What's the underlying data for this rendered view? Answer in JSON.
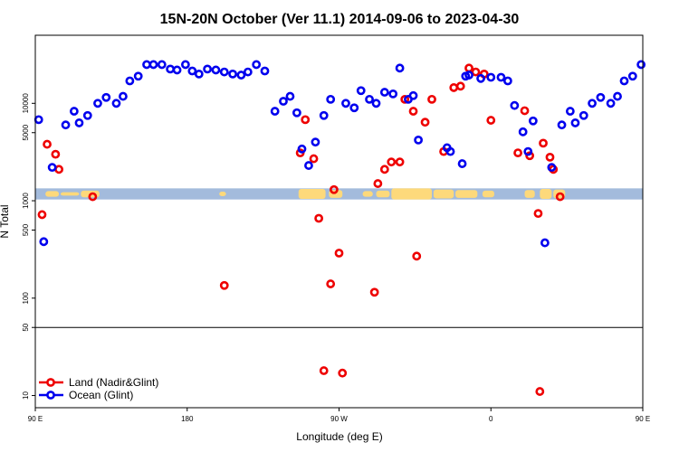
{
  "chart_data": {
    "type": "scatter",
    "title": "15N-20N October (Ver 11.1)   2014-09-06 to 2023-04-30",
    "xlabel": "Longitude (deg E)",
    "ylabel": "N Total",
    "xlim": [
      90,
      450
    ],
    "y_scale": "log",
    "ylim": [
      7.5,
      50000
    ],
    "x_ticks": [
      {
        "value": 90,
        "label": "90 E"
      },
      {
        "value": 180,
        "label": "180"
      },
      {
        "value": 270,
        "label": "90 W"
      },
      {
        "value": 360,
        "label": "0"
      },
      {
        "value": 450,
        "label": "90 E"
      },
      {
        "value": 540,
        "label": "180"
      }
    ],
    "y_ticks": [
      {
        "value": 10,
        "label": "10"
      },
      {
        "value": 50,
        "label": "50"
      },
      {
        "value": 100,
        "label": "100"
      },
      {
        "value": 500,
        "label": "500"
      },
      {
        "value": 1000,
        "label": "1000"
      },
      {
        "value": 5000,
        "label": "5000"
      },
      {
        "value": 10000,
        "label": "10000"
      }
    ],
    "reference_line_y": 50,
    "map_strip": {
      "y_low": 1030,
      "y_high": 1340,
      "ocean_color": "#a3bbdc",
      "land_color": "#fdd97b"
    },
    "legend_position": "bottom-left",
    "series": [
      {
        "name": "Land (Nadir&Glint)",
        "color": "#ee0000",
        "points": [
          [
            94,
            720
          ],
          [
            97,
            3800
          ],
          [
            102,
            3000
          ],
          [
            104,
            2100
          ],
          [
            124,
            1100
          ],
          [
            202,
            135
          ],
          [
            247,
            3100
          ],
          [
            250,
            6800
          ],
          [
            255,
            2700
          ],
          [
            258,
            660
          ],
          [
            261,
            18
          ],
          [
            265,
            140
          ],
          [
            267,
            1300
          ],
          [
            270,
            290
          ],
          [
            272,
            17
          ],
          [
            291,
            115
          ],
          [
            293,
            1500
          ],
          [
            297,
            2100
          ],
          [
            301,
            2500
          ],
          [
            306,
            2500
          ],
          [
            309,
            11000
          ],
          [
            314,
            8300
          ],
          [
            316,
            270
          ],
          [
            321,
            6400
          ],
          [
            325,
            11000
          ],
          [
            332,
            3200
          ],
          [
            338,
            14500
          ],
          [
            342,
            15000
          ],
          [
            347,
            23000
          ],
          [
            351,
            21000
          ],
          [
            356,
            20000
          ],
          [
            360,
            6700
          ],
          [
            376,
            3100
          ],
          [
            380,
            8400
          ],
          [
            383,
            2900
          ],
          [
            388,
            740
          ],
          [
            389,
            11
          ],
          [
            391,
            3900
          ],
          [
            395,
            2800
          ],
          [
            397,
            2100
          ],
          [
            401,
            1100
          ]
        ]
      },
      {
        "name": "Ocean (Glint)",
        "color": "#0000ee",
        "points": [
          [
            92,
            6800
          ],
          [
            95,
            380
          ],
          [
            100,
            2200
          ],
          [
            108,
            6000
          ],
          [
            113,
            8300
          ],
          [
            116,
            6300
          ],
          [
            121,
            7500
          ],
          [
            127,
            10000
          ],
          [
            132,
            11500
          ],
          [
            138,
            10000
          ],
          [
            142,
            11800
          ],
          [
            146,
            17000
          ],
          [
            151,
            19000
          ],
          [
            156,
            25000
          ],
          [
            160,
            25000
          ],
          [
            165,
            25000
          ],
          [
            170,
            22500
          ],
          [
            174,
            22000
          ],
          [
            179,
            25000
          ],
          [
            183,
            21500
          ],
          [
            187,
            20000
          ],
          [
            192,
            22500
          ],
          [
            197,
            22000
          ],
          [
            202,
            21000
          ],
          [
            207,
            20000
          ],
          [
            212,
            19500
          ],
          [
            216,
            21000
          ],
          [
            221,
            25000
          ],
          [
            226,
            21500
          ],
          [
            232,
            8300
          ],
          [
            237,
            10500
          ],
          [
            241,
            11800
          ],
          [
            245,
            8000
          ],
          [
            248,
            3400
          ],
          [
            252,
            2300
          ],
          [
            256,
            4000
          ],
          [
            261,
            7500
          ],
          [
            265,
            11000
          ],
          [
            274,
            10000
          ],
          [
            279,
            9000
          ],
          [
            283,
            13500
          ],
          [
            288,
            11000
          ],
          [
            292,
            10000
          ],
          [
            297,
            13000
          ],
          [
            302,
            12500
          ],
          [
            306,
            23000
          ],
          [
            311,
            11000
          ],
          [
            314,
            12000
          ],
          [
            317,
            4200
          ],
          [
            334,
            3500
          ],
          [
            336,
            3200
          ],
          [
            343,
            2400
          ],
          [
            345,
            19000
          ],
          [
            347,
            19500
          ],
          [
            354,
            18000
          ],
          [
            360,
            18500
          ],
          [
            366,
            18500
          ],
          [
            370,
            17000
          ],
          [
            374,
            9500
          ],
          [
            379,
            5100
          ],
          [
            382,
            3200
          ],
          [
            385,
            6600
          ],
          [
            392,
            370
          ],
          [
            396,
            2200
          ],
          [
            402,
            6000
          ],
          [
            407,
            8300
          ],
          [
            410,
            6300
          ],
          [
            415,
            7500
          ],
          [
            420,
            10000
          ],
          [
            425,
            11500
          ],
          [
            431,
            10000
          ],
          [
            435,
            11800
          ],
          [
            439,
            17000
          ],
          [
            444,
            19000
          ],
          [
            449,
            25000
          ]
        ]
      }
    ]
  }
}
